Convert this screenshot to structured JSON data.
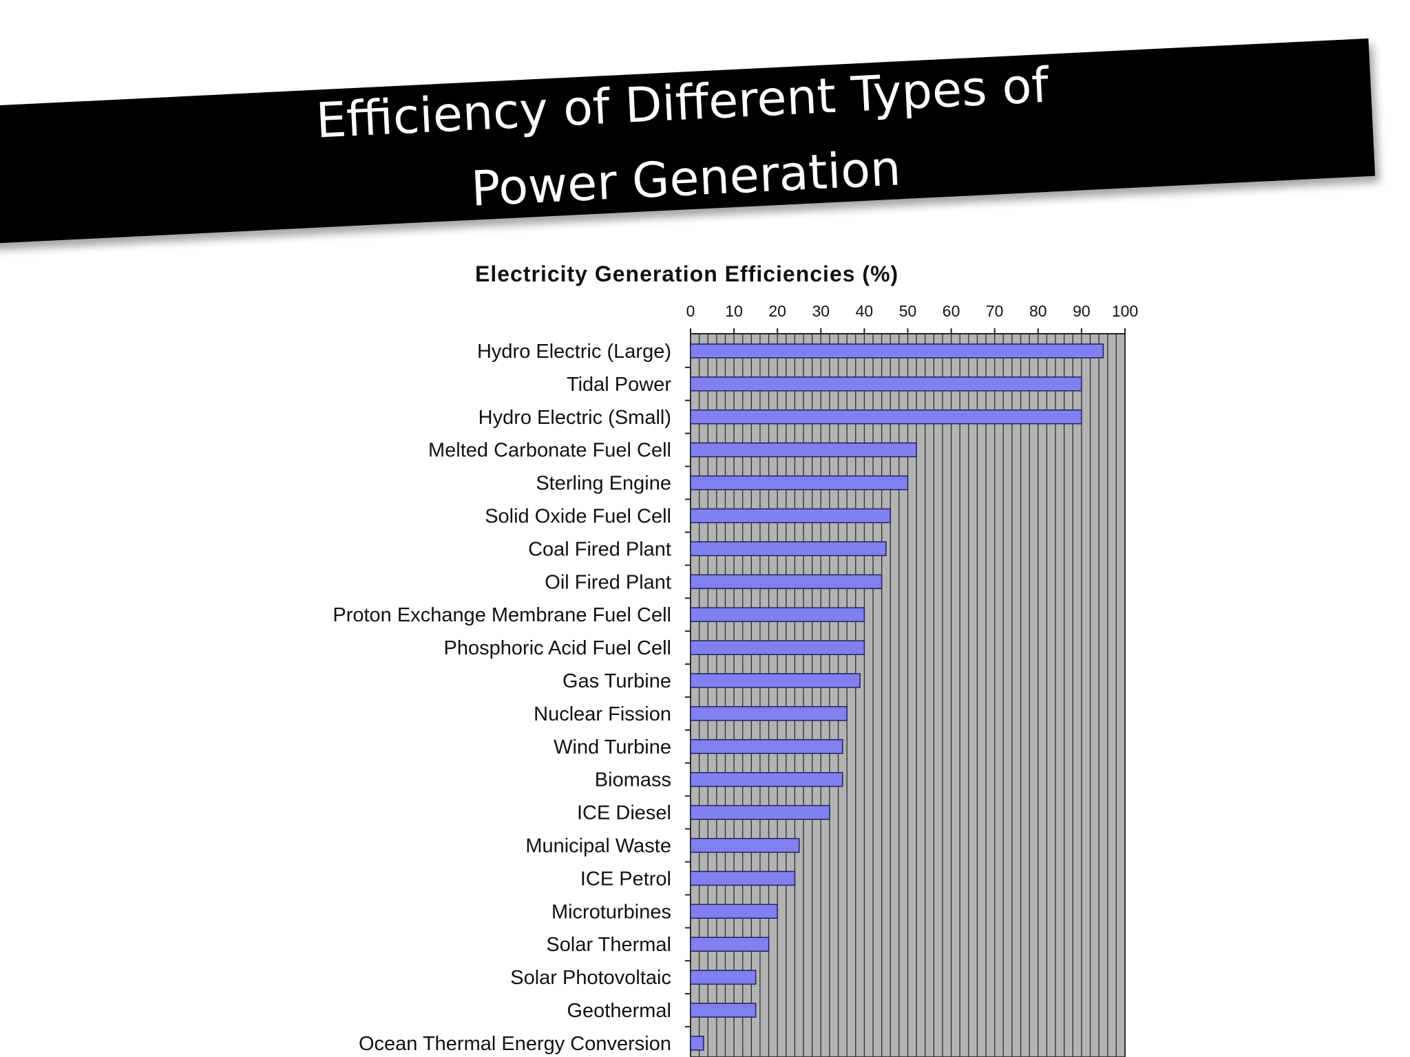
{
  "slide": {
    "title_line1": "Efficiency of Different Types of",
    "title_line2": "Power Generation"
  },
  "colors": {
    "banner": "#000000",
    "banner_text": "#ffffff",
    "plot_background": "#b3b3b3",
    "bar_fill": "#8080f0",
    "bar_stroke": "#202060"
  },
  "chart_data": {
    "type": "bar",
    "orientation": "horizontal",
    "title": "Electricity Generation Efficiencies (%)",
    "xlim": [
      0,
      100
    ],
    "x_ticks": [
      "0",
      "10",
      "20",
      "30",
      "40",
      "50",
      "60",
      "70",
      "80",
      "90",
      "100"
    ],
    "x_axis_position": "top",
    "grid": true,
    "categories": [
      "Hydro Electric (Large)",
      "Tidal Power",
      "Hydro Electric (Small)",
      "Melted Carbonate Fuel Cell",
      "Sterling Engine",
      "Solid Oxide Fuel Cell",
      "Coal Fired Plant",
      "Oil Fired Plant",
      "Proton Exchange Membrane Fuel Cell",
      "Phosphoric Acid Fuel Cell",
      "Gas Turbine",
      "Nuclear Fission",
      "Wind Turbine",
      "Biomass",
      "ICE Diesel",
      "Municipal Waste",
      "ICE Petrol",
      "Microturbines",
      "Solar Thermal",
      "Solar Photovoltaic",
      "Geothermal",
      "Ocean Thermal Energy Conversion"
    ],
    "values": [
      95,
      90,
      90,
      52,
      50,
      46,
      45,
      44,
      40,
      40,
      39,
      36,
      35,
      35,
      32,
      25,
      24,
      20,
      18,
      15,
      15,
      3
    ]
  }
}
